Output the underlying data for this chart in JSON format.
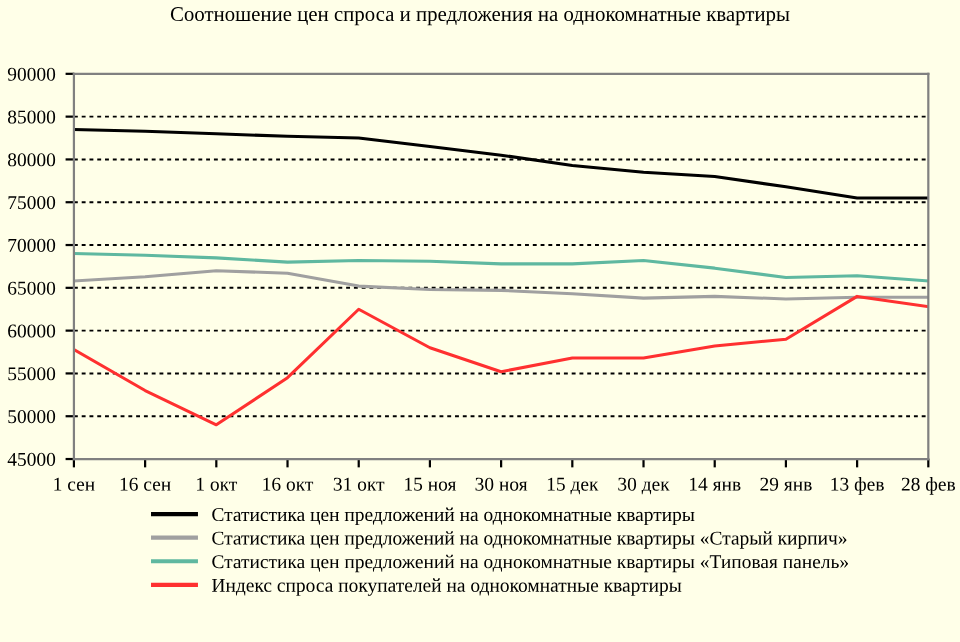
{
  "chart_data": {
    "type": "line",
    "title": "Соотношение цен спроса и предложения на однокомнатные квартиры",
    "categories": [
      "1 сен",
      "16 сен",
      "1 окт",
      "16 окт",
      "31 окт",
      "15 ноя",
      "30 ноя",
      "15 дек",
      "30 дек",
      "14 янв",
      "29 янв",
      "13 фев",
      "28 фев"
    ],
    "series": [
      {
        "name": "Статистика цен предложений на однокомнатные квартиры",
        "color": "#000000",
        "values": [
          83500,
          83300,
          83000,
          82700,
          82500,
          81500,
          80500,
          79300,
          78500,
          78000,
          76800,
          75500,
          75500
        ]
      },
      {
        "name": "Статистика цен предложений на однокомнатные квартиры «Старый кирпич»",
        "color": "#a0a0a0",
        "values": [
          65800,
          66300,
          67000,
          66700,
          65200,
          64800,
          64700,
          64300,
          63800,
          64000,
          63700,
          63900,
          63900
        ]
      },
      {
        "name": "Статистика цен предложений на однокомнатные квартиры «Типовая панель»",
        "color": "#5fb8a0",
        "values": [
          69000,
          68800,
          68500,
          68000,
          68200,
          68100,
          67800,
          67800,
          68200,
          67300,
          66200,
          66400,
          65800
        ]
      },
      {
        "name": "Индекс спроса покупателей на однокомнатные квартиры",
        "color": "#ff3030",
        "values": [
          57800,
          53000,
          49000,
          54500,
          62500,
          58000,
          55200,
          56800,
          56800,
          58200,
          59000,
          64000,
          62800
        ]
      }
    ],
    "ylim": [
      45000,
      90000
    ],
    "yticks": [
      45000,
      50000,
      55000,
      60000,
      65000,
      70000,
      75000,
      80000,
      85000,
      90000
    ],
    "grid": "y",
    "legend": "bottom",
    "marker": "none",
    "line_style": "solid"
  }
}
